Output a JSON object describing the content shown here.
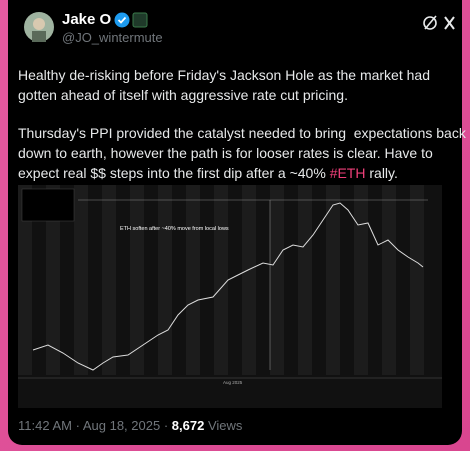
{
  "author": {
    "name": "Jake O",
    "handle": "@JO_wintermute"
  },
  "post": {
    "paragraph1": [
      "Healthy de-risking before Friday's Jackson Hole as the market had",
      "gotten ahead of itself with aggressive rate cut pricing."
    ],
    "paragraph2": [
      "Thursday's PPI provided the catalyst needed to bring  expectations back",
      "down to earth, however the path is for looser rates is clear. Have to"
    ],
    "last_line": {
      "before": "expect real $$ steps into the first dip after a ~40% ",
      "hashtag": "#ETH",
      "after": " rally."
    }
  },
  "chart_image": {
    "annotation": "ETH soften after ~40% move from local lows",
    "axis_label": "Aug 2025"
  },
  "footer": {
    "time": "11:42 AM",
    "separator": "·",
    "date": "Aug 18, 2025",
    "views": "8,672",
    "views_label": "Views"
  }
}
